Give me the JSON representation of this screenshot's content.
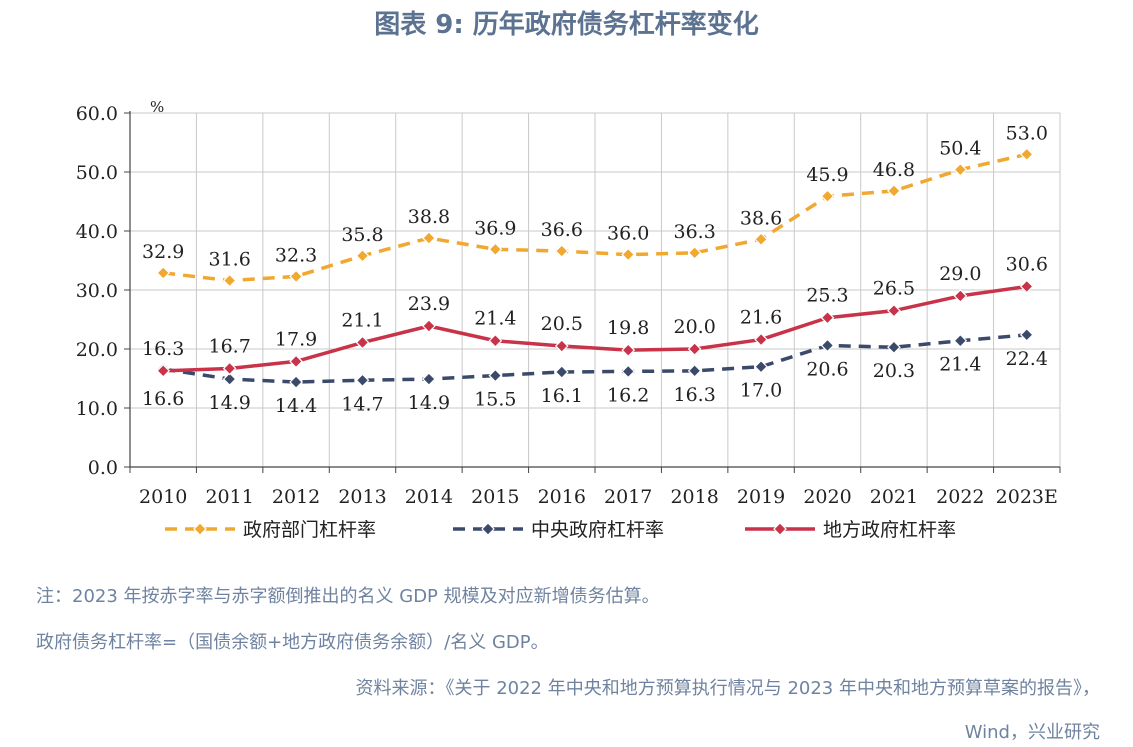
{
  "title": "图表 9:   历年政府债务杠杆率变化",
  "notes": {
    "note1": "注：2023 年按赤字率与赤字额倒推出的名义 GDP 规模及对应新增债务估算。",
    "note2": "政府债务杠杆率=（国债余额+地方政府债务余额）/名义 GDP。",
    "source1": "资料来源：《关于 2022 年中央和地方预算执行情况与 2023 年中央和地方预算草案的报告》，",
    "source2": "Wind，兴业研究"
  },
  "chart_data": {
    "type": "line",
    "title": "历年政府债务杠杆率变化",
    "unit_label": "%",
    "ylim": [
      0,
      60
    ],
    "yticks": [
      "0.0",
      "10.0",
      "20.0",
      "30.0",
      "40.0",
      "50.0",
      "60.0"
    ],
    "categories": [
      "2010",
      "2011",
      "2012",
      "2013",
      "2014",
      "2015",
      "2016",
      "2017",
      "2018",
      "2019",
      "2020",
      "2021",
      "2022",
      "2023E"
    ],
    "grid": true,
    "legend_position": "bottom",
    "series": [
      {
        "name": "政府部门杠杆率",
        "color": "#f0a830",
        "style": "dashed",
        "marker": "diamond",
        "values": [
          32.9,
          31.6,
          32.3,
          35.8,
          38.8,
          36.9,
          36.6,
          36.0,
          36.3,
          38.6,
          45.9,
          46.8,
          50.4,
          53.0
        ],
        "labels": [
          "32.9",
          "31.6",
          "32.3",
          "35.8",
          "38.8",
          "36.9",
          "36.6",
          "36.0",
          "36.3",
          "38.6",
          "45.9",
          "46.8",
          "50.4",
          "53.0"
        ]
      },
      {
        "name": "中央政府杠杆率",
        "color": "#3b4a6b",
        "style": "dashed",
        "marker": "diamond",
        "values": [
          16.6,
          14.9,
          14.4,
          14.7,
          14.9,
          15.5,
          16.1,
          16.2,
          16.3,
          17.0,
          20.6,
          20.3,
          21.4,
          22.4
        ],
        "labels": [
          "16.6",
          "14.9",
          "14.4",
          "14.7",
          "14.9",
          "15.5",
          "16.1",
          "16.2",
          "16.3",
          "17.0",
          "20.6",
          "20.3",
          "21.4",
          "22.4"
        ]
      },
      {
        "name": "地方政府杠杆率",
        "color": "#c8334a",
        "style": "solid",
        "marker": "diamond",
        "values": [
          16.3,
          16.7,
          17.9,
          21.1,
          23.9,
          21.4,
          20.5,
          19.8,
          20.0,
          21.6,
          25.3,
          26.5,
          29.0,
          30.6
        ],
        "labels": [
          "16.3",
          "16.7",
          "17.9",
          "21.1",
          "23.9",
          "21.4",
          "20.5",
          "19.8",
          "20.0",
          "21.6",
          "25.3",
          "26.5",
          "29.0",
          "30.6"
        ]
      }
    ]
  }
}
